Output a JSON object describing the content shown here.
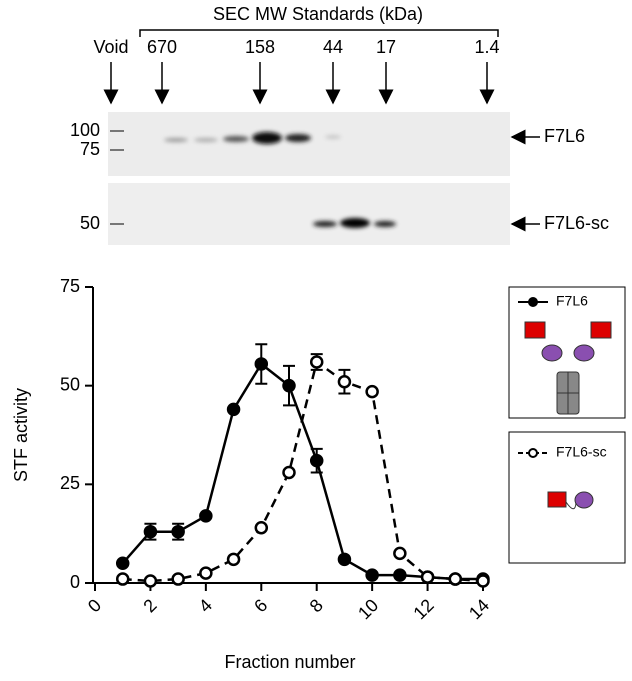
{
  "blot": {
    "title": "SEC MW Standards (kDa)",
    "markers": [
      "Void",
      "670",
      "158",
      "44",
      "17",
      "1.4"
    ],
    "mw_labels": [
      "100",
      "75",
      "50"
    ],
    "band_labels": [
      "F7L6",
      "F7L6-sc"
    ]
  },
  "chart_data": {
    "type": "line",
    "x_label": "Fraction number",
    "y_label": "STF activity",
    "x": [
      1,
      2,
      3,
      4,
      5,
      6,
      7,
      8,
      9,
      10,
      11,
      12,
      13,
      14
    ],
    "series": [
      {
        "name": "F7L6",
        "color": "#000000",
        "dashed": false,
        "filled": true,
        "values": [
          5,
          13,
          13,
          17,
          44,
          55.5,
          50,
          31,
          6,
          2,
          2,
          1.5,
          1,
          1
        ],
        "errors": [
          null,
          2,
          2,
          null,
          null,
          5,
          5,
          3,
          null,
          null,
          null,
          null,
          null,
          null
        ]
      },
      {
        "name": "F7L6-sc",
        "color": "#000000",
        "dashed": true,
        "filled": false,
        "values": [
          1,
          0.5,
          1,
          2.5,
          6,
          14,
          28,
          56,
          51,
          48.5,
          7.5,
          1.5,
          1,
          0.5
        ],
        "errors": [
          null,
          null,
          null,
          null,
          null,
          null,
          null,
          2,
          3,
          null,
          null,
          null,
          null,
          null
        ]
      }
    ],
    "xlim": [
      0,
      14
    ],
    "xticks": [
      0,
      2,
      4,
      6,
      8,
      10,
      12,
      14
    ],
    "ylim": [
      0,
      75
    ],
    "yticks": [
      0,
      25,
      50,
      75
    ],
    "grid": false
  }
}
